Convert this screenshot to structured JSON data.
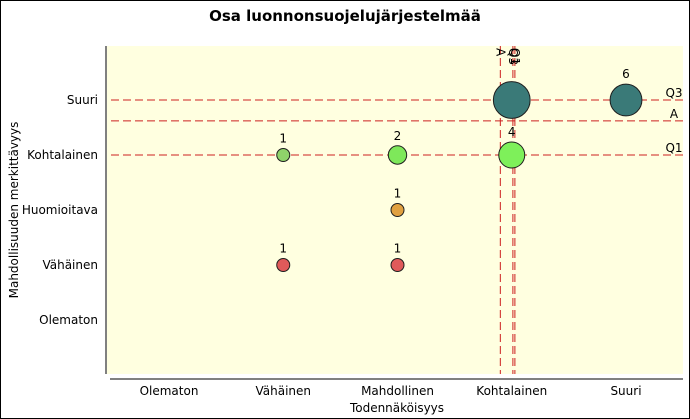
{
  "chart_data": {
    "type": "scatter",
    "title": "Osa luonnonsuojelujärjestelmää",
    "xlabel": "Todennäköisyys",
    "ylabel": "Mahdollisuuden merkittävyys",
    "x_categories": [
      "Olematon",
      "Vähäinen",
      "Mahdollinen",
      "Kohtalainen",
      "Suuri"
    ],
    "y_categories": [
      "Olematon",
      "Vähäinen",
      "Huomioitava",
      "Kohtalainen",
      "Suuri"
    ],
    "points": [
      {
        "x": "Vähäinen",
        "y": "Kohtalainen",
        "count": 1,
        "color": "#8fd36a"
      },
      {
        "x": "Mahdollinen",
        "y": "Kohtalainen",
        "count": 2,
        "color": "#7ee85a"
      },
      {
        "x": "Kohtalainen",
        "y": "Kohtalainen",
        "count": 4,
        "color": "#7ef05a"
      },
      {
        "x": "Mahdollinen",
        "y": "Huomioitava",
        "count": 1,
        "color": "#e0a040"
      },
      {
        "x": "Vähäinen",
        "y": "Vähäinen",
        "count": 1,
        "color": "#e05a5a"
      },
      {
        "x": "Mahdollinen",
        "y": "Vähäinen",
        "count": 1,
        "color": "#e05a5a"
      },
      {
        "x": "Kohtalainen",
        "y": "Suuri",
        "count": 8,
        "color": "#3a7a78"
      },
      {
        "x": "Suuri",
        "y": "Suuri",
        "count": 6,
        "color": "#3a7a78"
      }
    ],
    "horizontal_lines": [
      {
        "label": "Q3",
        "y": 5.0
      },
      {
        "label": "A",
        "y": 4.62
      },
      {
        "label": "Q1",
        "y": 4.0
      }
    ],
    "vertical_lines": [
      {
        "label": "A",
        "x": 3.9
      },
      {
        "label": "Q3",
        "x": 4.01
      },
      {
        "label": "Q1",
        "x": 4.01
      }
    ],
    "reference_line_color": "#cc2020",
    "plot_background": "#ffffe0",
    "grid": false
  }
}
